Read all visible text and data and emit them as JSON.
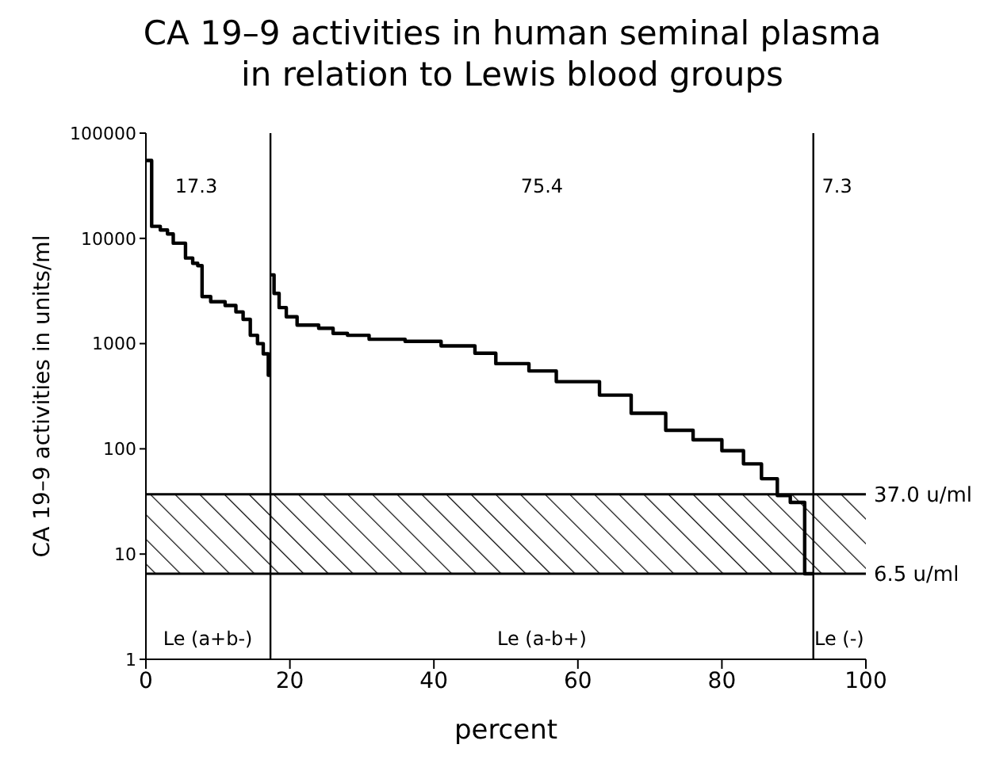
{
  "chart_data": {
    "type": "step",
    "title": "CA 19–9 activities in human seminal plasma in relation to Lewis blood groups",
    "xlabel": "percent",
    "ylabel": "CA 19–9 activities in units/ml",
    "log": "y",
    "xlim": [
      0,
      100
    ],
    "xticks": [
      0,
      20,
      40,
      60,
      80,
      100
    ],
    "ylim": [
      1,
      100000
    ],
    "yticks": [
      1,
      10,
      100,
      1000,
      10000,
      100000
    ],
    "grid": false,
    "legend": false,
    "series": [
      {
        "color": "#000000",
        "x": [
          0,
          0.8,
          2,
          3,
          3.8,
          5.5,
          6.5,
          7.2,
          7.8,
          9,
          11,
          12.5,
          13.5,
          14.5,
          15.5,
          16.3,
          17,
          17.3
        ],
        "values": [
          55000,
          13000,
          12000,
          11000,
          9000,
          6500,
          5800,
          5500,
          2800,
          2500,
          2300,
          2000,
          1700,
          1200,
          1000,
          800,
          500,
          500
        ]
      },
      {
        "color": "#000000",
        "x": [
          17.3,
          17.8,
          18.5,
          19.5,
          21,
          24,
          26,
          28,
          31,
          36,
          41,
          45.7,
          48.6,
          53.2,
          57,
          63,
          67.4,
          72.2,
          76,
          80,
          83,
          85.5,
          87.7,
          89.5,
          91.5,
          92.7
        ],
        "values": [
          4500,
          3000,
          2200,
          1800,
          1500,
          1400,
          1250,
          1200,
          1100,
          1050,
          950,
          810,
          645,
          550,
          435,
          324,
          218,
          150,
          122,
          96,
          72,
          52,
          36,
          31,
          6.5,
          6.5
        ]
      }
    ],
    "bands": [
      {
        "axis": "y",
        "from": 6.5,
        "to": 37
      }
    ],
    "ref_lines": [
      {
        "axis": "y",
        "value": 37,
        "label": "37.0 u/ml"
      },
      {
        "axis": "y",
        "value": 6.5,
        "label": "6.5 u/ml"
      },
      {
        "axis": "x",
        "value": 17.3
      },
      {
        "axis": "x",
        "value": 92.7
      }
    ],
    "annotations": [
      "17.3",
      "75.4",
      "7.3",
      "Le (a+b-)",
      "Le (a-b+)",
      "Le (-)"
    ]
  }
}
